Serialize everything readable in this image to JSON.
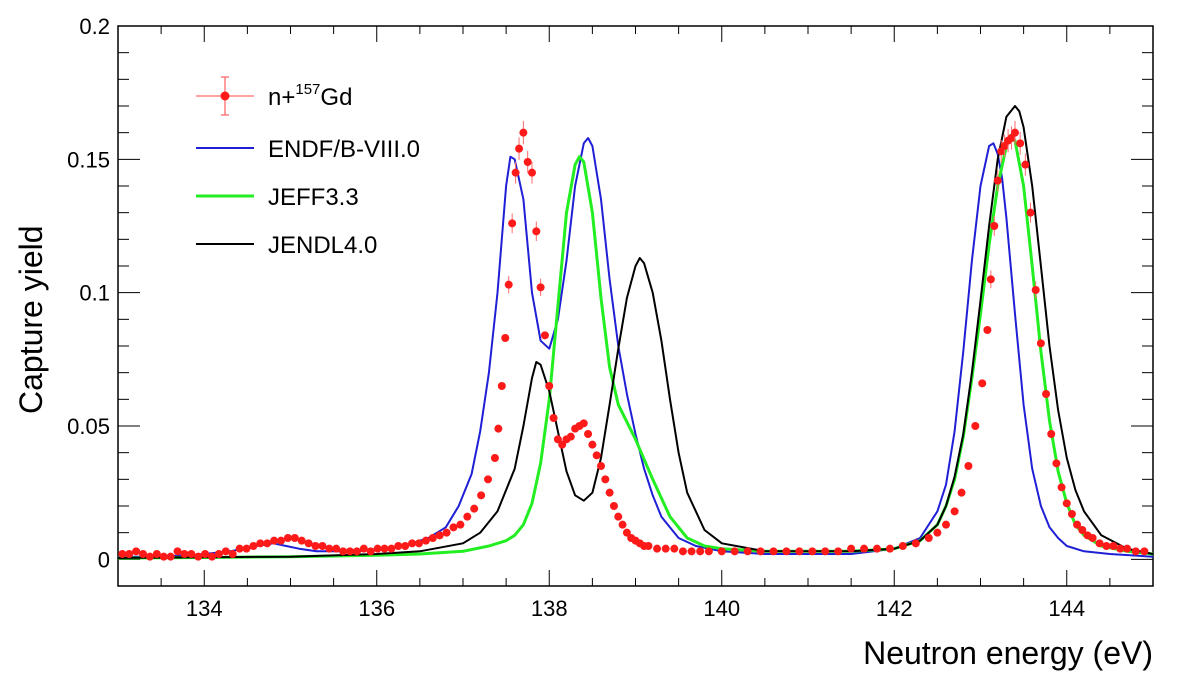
{
  "chart_data": {
    "type": "scatter",
    "xlabel": "Neutron energy (eV)",
    "ylabel": "Capture yield",
    "xlim": [
      133,
      145
    ],
    "ylim": [
      -0.01,
      0.2
    ],
    "x_ticks": [
      134,
      136,
      138,
      140,
      142,
      144
    ],
    "x_tick_labels": [
      "134",
      "136",
      "138",
      "140",
      "142",
      "144"
    ],
    "y_ticks": [
      0,
      0.05,
      0.1,
      0.15,
      0.2
    ],
    "y_tick_labels": [
      "0",
      "0.05",
      "0.1",
      "0.15",
      "0.2"
    ],
    "grid": false,
    "legend_position": "top-left",
    "legend": [
      {
        "label_main": "n+",
        "label_sup": "157",
        "label_tail": "Gd",
        "color": "#ff1a1a",
        "marker": "point-errorbar"
      },
      {
        "label": "ENDF/B-VIII.0",
        "color": "#1f1fd6",
        "marker": "line"
      },
      {
        "label": "JEFF3.3",
        "color": "#22ee22",
        "marker": "line"
      },
      {
        "label": "JENDL4.0",
        "color": "#000000",
        "marker": "line"
      }
    ],
    "series": [
      {
        "name": "n+157Gd",
        "kind": "points",
        "color": "#ff1a1a",
        "errorbar_color": "#ff6a6a",
        "points": [
          [
            133.05,
            0.002
          ],
          [
            133.13,
            0.002
          ],
          [
            133.21,
            0.003
          ],
          [
            133.29,
            0.002
          ],
          [
            133.37,
            0.001
          ],
          [
            133.45,
            0.002
          ],
          [
            133.53,
            0.001
          ],
          [
            133.61,
            0.001
          ],
          [
            133.69,
            0.003
          ],
          [
            133.77,
            0.002
          ],
          [
            133.85,
            0.002
          ],
          [
            133.93,
            0.001
          ],
          [
            134.01,
            0.002
          ],
          [
            134.09,
            0.001
          ],
          [
            134.17,
            0.002
          ],
          [
            134.25,
            0.003
          ],
          [
            134.33,
            0.002
          ],
          [
            134.41,
            0.004
          ],
          [
            134.49,
            0.004
          ],
          [
            134.57,
            0.005
          ],
          [
            134.65,
            0.006
          ],
          [
            134.73,
            0.006
          ],
          [
            134.81,
            0.007
          ],
          [
            134.89,
            0.007
          ],
          [
            134.97,
            0.008
          ],
          [
            135.05,
            0.008
          ],
          [
            135.13,
            0.007
          ],
          [
            135.21,
            0.006
          ],
          [
            135.29,
            0.005
          ],
          [
            135.37,
            0.005
          ],
          [
            135.45,
            0.004
          ],
          [
            135.53,
            0.004
          ],
          [
            135.61,
            0.003
          ],
          [
            135.69,
            0.003
          ],
          [
            135.77,
            0.003
          ],
          [
            135.85,
            0.004
          ],
          [
            135.93,
            0.003
          ],
          [
            136.01,
            0.004
          ],
          [
            136.09,
            0.004
          ],
          [
            136.17,
            0.004
          ],
          [
            136.25,
            0.005
          ],
          [
            136.33,
            0.005
          ],
          [
            136.41,
            0.006
          ],
          [
            136.49,
            0.006
          ],
          [
            136.57,
            0.007
          ],
          [
            136.65,
            0.008
          ],
          [
            136.73,
            0.009
          ],
          [
            136.81,
            0.01
          ],
          [
            136.89,
            0.012
          ],
          [
            136.97,
            0.013
          ],
          [
            137.05,
            0.016
          ],
          [
            137.13,
            0.019
          ],
          [
            137.21,
            0.024
          ],
          [
            137.29,
            0.03
          ],
          [
            137.37,
            0.038
          ],
          [
            137.41,
            0.049
          ],
          [
            137.45,
            0.065
          ],
          [
            137.49,
            0.083
          ],
          [
            137.53,
            0.103
          ],
          [
            137.57,
            0.126
          ],
          [
            137.61,
            0.145
          ],
          [
            137.65,
            0.154
          ],
          [
            137.7,
            0.16
          ],
          [
            137.75,
            0.149
          ],
          [
            137.8,
            0.145
          ],
          [
            137.85,
            0.123
          ],
          [
            137.9,
            0.102
          ],
          [
            137.95,
            0.084
          ],
          [
            138.0,
            0.065
          ],
          [
            138.05,
            0.053
          ],
          [
            138.1,
            0.045
          ],
          [
            138.15,
            0.043
          ],
          [
            138.2,
            0.045
          ],
          [
            138.25,
            0.046
          ],
          [
            138.3,
            0.049
          ],
          [
            138.35,
            0.05
          ],
          [
            138.4,
            0.051
          ],
          [
            138.45,
            0.047
          ],
          [
            138.5,
            0.043
          ],
          [
            138.55,
            0.039
          ],
          [
            138.6,
            0.035
          ],
          [
            138.65,
            0.03
          ],
          [
            138.7,
            0.025
          ],
          [
            138.75,
            0.02
          ],
          [
            138.8,
            0.016
          ],
          [
            138.85,
            0.013
          ],
          [
            138.9,
            0.01
          ],
          [
            138.95,
            0.008
          ],
          [
            139.0,
            0.007
          ],
          [
            139.05,
            0.006
          ],
          [
            139.1,
            0.005
          ],
          [
            139.15,
            0.005
          ],
          [
            139.25,
            0.004
          ],
          [
            139.35,
            0.004
          ],
          [
            139.45,
            0.004
          ],
          [
            139.55,
            0.003
          ],
          [
            139.65,
            0.003
          ],
          [
            139.75,
            0.003
          ],
          [
            139.85,
            0.003
          ],
          [
            140.0,
            0.003
          ],
          [
            140.15,
            0.003
          ],
          [
            140.3,
            0.003
          ],
          [
            140.45,
            0.003
          ],
          [
            140.6,
            0.003
          ],
          [
            140.75,
            0.003
          ],
          [
            140.9,
            0.003
          ],
          [
            141.05,
            0.003
          ],
          [
            141.2,
            0.003
          ],
          [
            141.35,
            0.003
          ],
          [
            141.5,
            0.004
          ],
          [
            141.65,
            0.004
          ],
          [
            141.8,
            0.004
          ],
          [
            141.95,
            0.004
          ],
          [
            142.1,
            0.005
          ],
          [
            142.25,
            0.006
          ],
          [
            142.4,
            0.008
          ],
          [
            142.5,
            0.01
          ],
          [
            142.6,
            0.013
          ],
          [
            142.7,
            0.018
          ],
          [
            142.78,
            0.025
          ],
          [
            142.86,
            0.035
          ],
          [
            142.94,
            0.05
          ],
          [
            143.02,
            0.066
          ],
          [
            143.08,
            0.086
          ],
          [
            143.12,
            0.105
          ],
          [
            143.16,
            0.125
          ],
          [
            143.2,
            0.142
          ],
          [
            143.24,
            0.153
          ],
          [
            143.28,
            0.155
          ],
          [
            143.32,
            0.157
          ],
          [
            143.36,
            0.158
          ],
          [
            143.4,
            0.16
          ],
          [
            143.46,
            0.156
          ],
          [
            143.52,
            0.148
          ],
          [
            143.58,
            0.13
          ],
          [
            143.64,
            0.101
          ],
          [
            143.7,
            0.081
          ],
          [
            143.76,
            0.062
          ],
          [
            143.82,
            0.047
          ],
          [
            143.88,
            0.036
          ],
          [
            143.94,
            0.027
          ],
          [
            144.0,
            0.021
          ],
          [
            144.06,
            0.017
          ],
          [
            144.12,
            0.013
          ],
          [
            144.18,
            0.011
          ],
          [
            144.24,
            0.009
          ],
          [
            144.3,
            0.008
          ],
          [
            144.38,
            0.006
          ],
          [
            144.46,
            0.005
          ],
          [
            144.54,
            0.005
          ],
          [
            144.62,
            0.004
          ],
          [
            144.7,
            0.004
          ],
          [
            144.8,
            0.003
          ],
          [
            144.9,
            0.003
          ]
        ]
      },
      {
        "name": "ENDF/B-VIII.0",
        "kind": "line",
        "color": "#1f1fd6",
        "x": [
          133,
          133.5,
          134,
          134.3,
          134.6,
          134.8,
          134.95,
          135.1,
          135.3,
          135.5,
          135.8,
          136.1,
          136.4,
          136.6,
          136.8,
          136.95,
          137.1,
          137.2,
          137.3,
          137.4,
          137.45,
          137.5,
          137.55,
          137.6,
          137.7,
          137.8,
          137.9,
          138.0,
          138.1,
          138.2,
          138.3,
          138.4,
          138.45,
          138.5,
          138.6,
          138.7,
          138.8,
          138.9,
          139.0,
          139.1,
          139.2,
          139.3,
          139.5,
          139.7,
          140.0,
          140.5,
          141.0,
          141.5,
          142.0,
          142.3,
          142.5,
          142.6,
          142.7,
          142.8,
          142.9,
          143.0,
          143.1,
          143.15,
          143.2,
          143.25,
          143.3,
          143.4,
          143.5,
          143.6,
          143.7,
          143.8,
          143.9,
          144.0,
          144.2,
          144.5,
          145
        ],
        "values": [
          0.001,
          0.001,
          0.002,
          0.003,
          0.005,
          0.006,
          0.005,
          0.004,
          0.003,
          0.003,
          0.003,
          0.004,
          0.006,
          0.008,
          0.012,
          0.02,
          0.032,
          0.048,
          0.07,
          0.1,
          0.12,
          0.14,
          0.151,
          0.15,
          0.135,
          0.1,
          0.082,
          0.079,
          0.09,
          0.112,
          0.14,
          0.156,
          0.158,
          0.155,
          0.135,
          0.105,
          0.08,
          0.062,
          0.047,
          0.034,
          0.024,
          0.016,
          0.008,
          0.005,
          0.003,
          0.002,
          0.002,
          0.002,
          0.004,
          0.008,
          0.018,
          0.028,
          0.048,
          0.078,
          0.112,
          0.14,
          0.155,
          0.156,
          0.152,
          0.143,
          0.128,
          0.092,
          0.058,
          0.034,
          0.02,
          0.012,
          0.008,
          0.005,
          0.003,
          0.002,
          0.001
        ]
      },
      {
        "name": "JEFF3.3",
        "kind": "line",
        "color": "#22ee22",
        "x": [
          133,
          134,
          135,
          136,
          136.5,
          137,
          137.3,
          137.5,
          137.6,
          137.7,
          137.8,
          137.9,
          138.0,
          138.1,
          138.2,
          138.3,
          138.35,
          138.4,
          138.5,
          138.6,
          138.7,
          138.8,
          139.0,
          139.2,
          139.4,
          139.6,
          139.8,
          140.0,
          140.5,
          141,
          141.5,
          142,
          142.3,
          142.5,
          142.6,
          142.7,
          142.8,
          142.9,
          143.0,
          143.1,
          143.2,
          143.3,
          143.35,
          143.4,
          143.5,
          143.6,
          143.7,
          143.8,
          143.9,
          144.0,
          144.1,
          144.2,
          144.4,
          144.7,
          145
        ],
        "values": [
          0.0005,
          0.0007,
          0.001,
          0.0015,
          0.002,
          0.003,
          0.005,
          0.007,
          0.009,
          0.013,
          0.021,
          0.036,
          0.06,
          0.095,
          0.13,
          0.148,
          0.151,
          0.149,
          0.13,
          0.098,
          0.072,
          0.058,
          0.045,
          0.03,
          0.016,
          0.008,
          0.005,
          0.004,
          0.003,
          0.003,
          0.003,
          0.004,
          0.007,
          0.013,
          0.02,
          0.03,
          0.046,
          0.068,
          0.092,
          0.118,
          0.14,
          0.155,
          0.159,
          0.157,
          0.14,
          0.11,
          0.078,
          0.052,
          0.033,
          0.021,
          0.013,
          0.009,
          0.005,
          0.003,
          0.002
        ]
      },
      {
        "name": "JENDL4.0",
        "kind": "line",
        "color": "#000000",
        "x": [
          133,
          134,
          135,
          136,
          136.5,
          137,
          137.2,
          137.4,
          137.6,
          137.7,
          137.8,
          137.85,
          137.9,
          138.0,
          138.1,
          138.2,
          138.3,
          138.4,
          138.5,
          138.6,
          138.7,
          138.8,
          138.9,
          139.0,
          139.05,
          139.1,
          139.2,
          139.3,
          139.4,
          139.5,
          139.6,
          139.8,
          140.0,
          140.5,
          141,
          141.5,
          142,
          142.3,
          142.5,
          142.6,
          142.7,
          142.8,
          142.9,
          143.0,
          143.1,
          143.2,
          143.3,
          143.4,
          143.45,
          143.5,
          143.6,
          143.7,
          143.8,
          143.9,
          144.0,
          144.1,
          144.2,
          144.4,
          144.7,
          145
        ],
        "values": [
          0.0005,
          0.0008,
          0.001,
          0.002,
          0.003,
          0.006,
          0.01,
          0.018,
          0.034,
          0.05,
          0.068,
          0.074,
          0.073,
          0.063,
          0.048,
          0.033,
          0.024,
          0.022,
          0.025,
          0.038,
          0.058,
          0.079,
          0.098,
          0.11,
          0.113,
          0.111,
          0.1,
          0.082,
          0.06,
          0.04,
          0.025,
          0.011,
          0.006,
          0.003,
          0.003,
          0.003,
          0.004,
          0.007,
          0.013,
          0.02,
          0.031,
          0.047,
          0.07,
          0.097,
          0.125,
          0.15,
          0.166,
          0.17,
          0.168,
          0.162,
          0.14,
          0.11,
          0.08,
          0.056,
          0.038,
          0.026,
          0.018,
          0.009,
          0.004,
          0.002
        ]
      }
    ]
  }
}
